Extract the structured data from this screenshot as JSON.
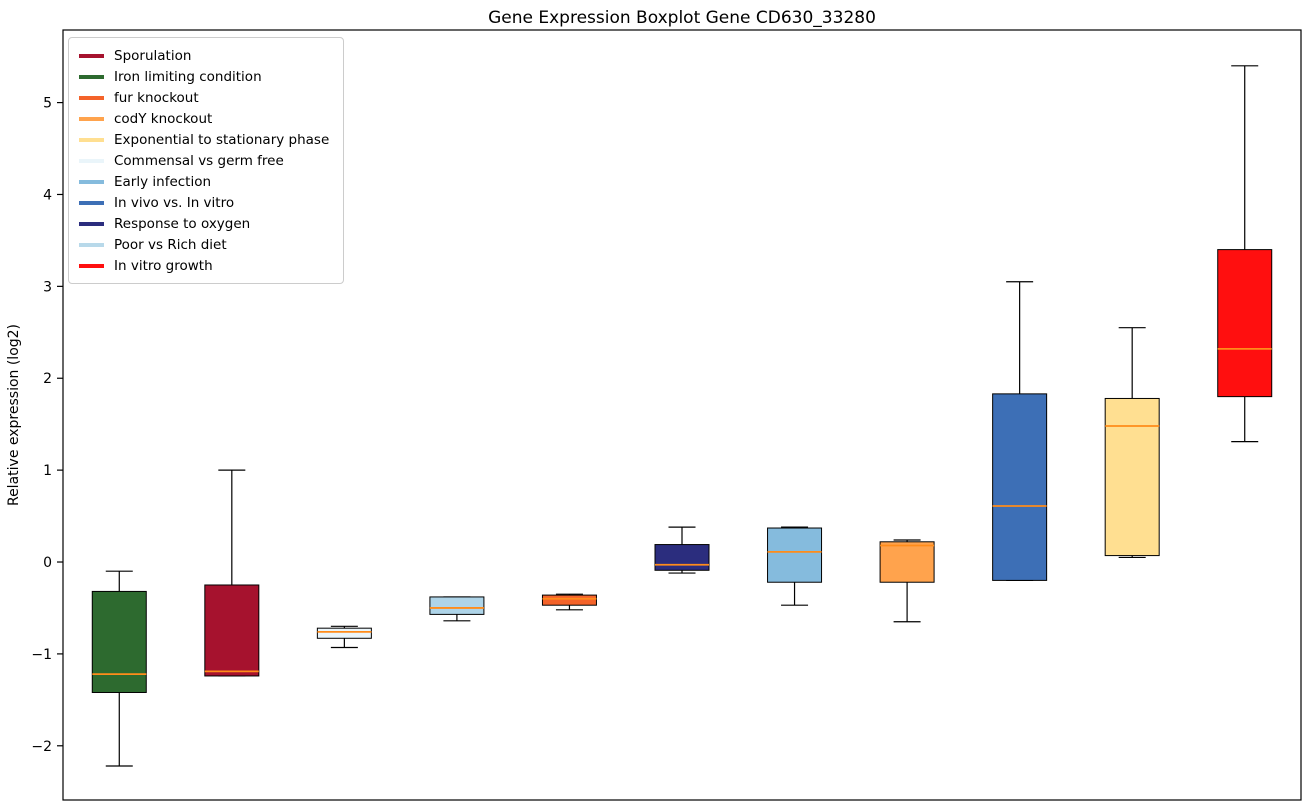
{
  "figure": {
    "background": "#ffffff",
    "axis_color": "#000000",
    "median_color": "#ff8c1a",
    "whisker_color": "#000000"
  },
  "chart_data": {
    "type": "boxplot",
    "title": "Gene Expression Boxplot Gene CD630_33280",
    "ylabel": "Relative expression (log2)",
    "xlabel": "",
    "ylim": [
      -2.59,
      5.79
    ],
    "yticks": [
      -2,
      -1,
      0,
      1,
      2,
      3,
      4,
      5
    ],
    "grid": false,
    "legend_position": "upper left",
    "legend": [
      {
        "label": "Sporulation",
        "color": "#a6122e"
      },
      {
        "label": "Iron limiting condition",
        "color": "#2d6a2f"
      },
      {
        "label": "fur knockout",
        "color": "#f4632a"
      },
      {
        "label": "codY knockout",
        "color": "#ffa34d"
      },
      {
        "label": "Exponential to stationary phase",
        "color": "#ffdf91"
      },
      {
        "label": "Commensal vs germ free",
        "color": "#eaf5fa"
      },
      {
        "label": "Early infection",
        "color": "#85bbdd"
      },
      {
        "label": "In vivo vs. In vitro",
        "color": "#3d6fb6"
      },
      {
        "label": "Response to oxygen",
        "color": "#2b2d7e"
      },
      {
        "label": "Poor vs Rich diet",
        "color": "#b8d9ea"
      },
      {
        "label": "In vitro growth",
        "color": "#ff0f0f"
      }
    ],
    "boxes": [
      {
        "name": "Iron limiting condition",
        "color": "#2d6a2f",
        "whisker_low": -2.22,
        "q1": -1.42,
        "median": -1.22,
        "q3": -0.32,
        "whisker_high": -0.1
      },
      {
        "name": "Sporulation",
        "color": "#a6122e",
        "whisker_low": -1.24,
        "q1": -1.24,
        "median": -1.19,
        "q3": -0.25,
        "whisker_high": 1.0
      },
      {
        "name": "Commensal vs germ free",
        "color": "#eaf5fa",
        "whisker_low": -0.93,
        "q1": -0.83,
        "median": -0.76,
        "q3": -0.72,
        "whisker_high": -0.7
      },
      {
        "name": "Poor vs Rich diet",
        "color": "#aed4e8",
        "whisker_low": -0.64,
        "q1": -0.57,
        "median": -0.5,
        "q3": -0.38,
        "whisker_high": -0.38
      },
      {
        "name": "fur knockout",
        "color": "#f4632a",
        "whisker_low": -0.52,
        "q1": -0.47,
        "median": -0.4,
        "q3": -0.36,
        "whisker_high": -0.35
      },
      {
        "name": "Response to oxygen",
        "color": "#2b2d7e",
        "whisker_low": -0.12,
        "q1": -0.09,
        "median": -0.03,
        "q3": 0.19,
        "whisker_high": 0.38
      },
      {
        "name": "Early infection",
        "color": "#85bbdd",
        "whisker_low": -0.47,
        "q1": -0.22,
        "median": 0.11,
        "q3": 0.37,
        "whisker_high": 0.38
      },
      {
        "name": "codY knockout",
        "color": "#ffa34d",
        "whisker_low": -0.65,
        "q1": -0.22,
        "median": 0.18,
        "q3": 0.22,
        "whisker_high": 0.24
      },
      {
        "name": "In vivo vs. In vitro",
        "color": "#3d6fb6",
        "whisker_low": -0.2,
        "q1": -0.2,
        "median": 0.61,
        "q3": 1.83,
        "whisker_high": 3.05
      },
      {
        "name": "Exponential to stationary phase",
        "color": "#ffdf91",
        "whisker_low": 0.05,
        "q1": 0.07,
        "median": 1.48,
        "q3": 1.78,
        "whisker_high": 2.55
      },
      {
        "name": "In vitro growth",
        "color": "#ff0f0f",
        "whisker_low": 1.31,
        "q1": 1.8,
        "median": 2.32,
        "q3": 3.4,
        "whisker_high": 5.4
      }
    ]
  }
}
